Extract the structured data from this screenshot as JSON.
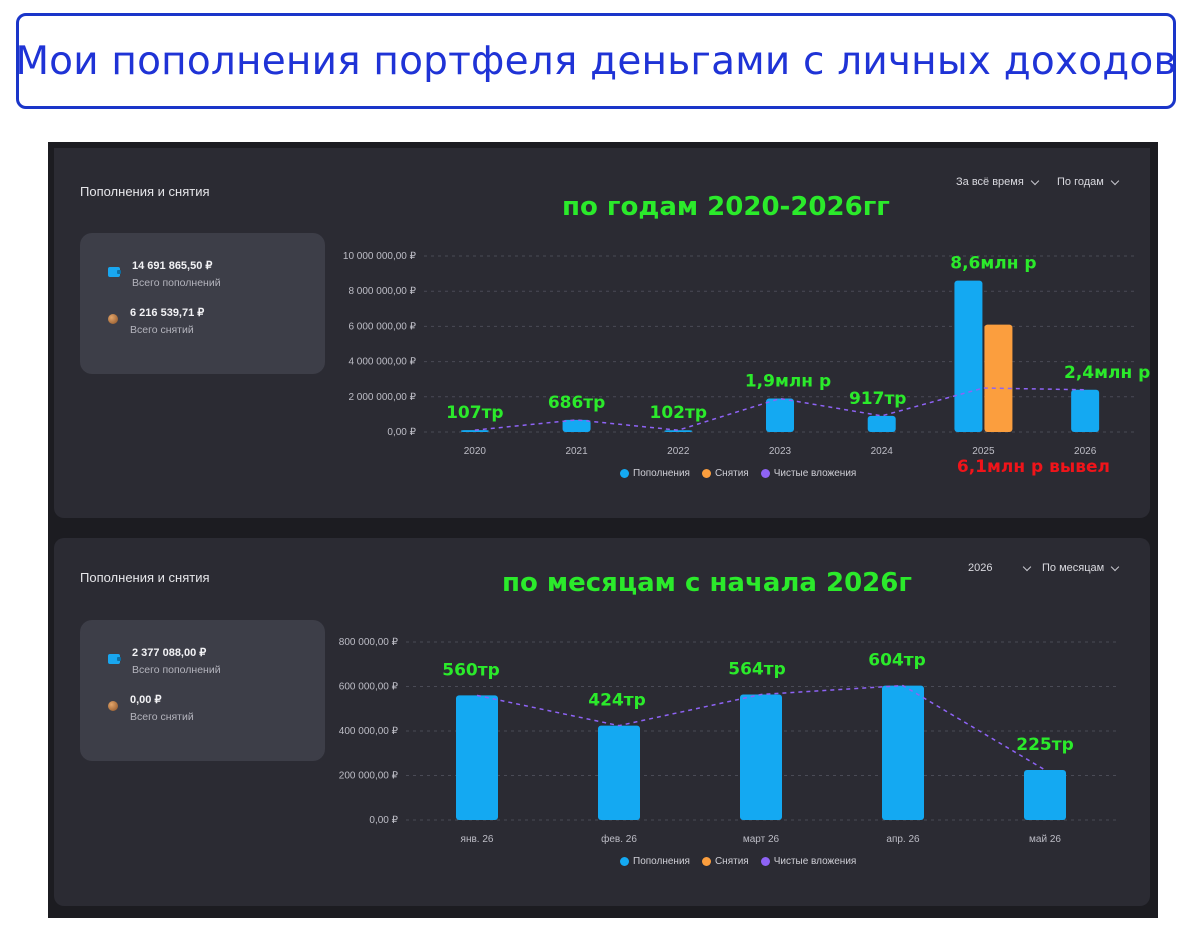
{
  "banner": {
    "title": "Мои пополнения портфеля деньгами с личных доходов"
  },
  "colors": {
    "deposits": "#14a9f2",
    "withdrawals": "#fb9e3e",
    "net": "#8e63f5",
    "annotation_green": "#2bea2b",
    "annotation_red": "#f0141a"
  },
  "panels": [
    {
      "title": "Пополнения и снятия",
      "dropdowns": [
        "За всё время",
        "По годам"
      ],
      "summary": {
        "deposits_value": "14 691 865,50 ₽",
        "deposits_label": "Всего пополнений",
        "withdrawals_value": "6 216 539,71 ₽",
        "withdrawals_label": "Всего снятий"
      },
      "heading_overlay": "по годам 2020-2026гг",
      "legend": [
        "Пополнения",
        "Снятия",
        "Чистые вложения"
      ]
    },
    {
      "title": "Пополнения и снятия",
      "dropdowns": [
        "2026",
        "По месяцам"
      ],
      "summary": {
        "deposits_value": "2 377 088,00 ₽",
        "deposits_label": "Всего пополнений",
        "withdrawals_value": "0,00 ₽",
        "withdrawals_label": "Всего снятий"
      },
      "heading_overlay": "по месяцам с начала 2026г",
      "legend": [
        "Пополнения",
        "Снятия",
        "Чистые вложения"
      ]
    }
  ],
  "chart_data": [
    {
      "type": "bar",
      "categories": [
        "2020",
        "2021",
        "2022",
        "2023",
        "2024",
        "2025",
        "2026"
      ],
      "y_ticks": [
        "0,00 ₽",
        "2 000 000,00 ₽",
        "4 000 000,00 ₽",
        "6 000 000,00 ₽",
        "8 000 000,00 ₽",
        "10 000 000,00 ₽"
      ],
      "ylim": [
        0,
        10000000
      ],
      "series": [
        {
          "name": "Пополнения",
          "values": [
            107000,
            686000,
            102000,
            1900000,
            917000,
            8600000,
            2400000
          ]
        },
        {
          "name": "Снятия",
          "values": [
            0,
            0,
            0,
            0,
            0,
            6100000,
            0
          ]
        },
        {
          "name": "Чистые вложения",
          "values": [
            107000,
            686000,
            102000,
            1900000,
            917000,
            2500000,
            2400000
          ]
        }
      ],
      "annotations": [
        "107тр",
        "686тр",
        "102тр",
        "1,9млн р",
        "917тр",
        "8,6млн р",
        "2,4млн р"
      ],
      "withdrawal_annotation": "6,1млн р вывел",
      "grid": true,
      "legend_position": "bottom"
    },
    {
      "type": "bar",
      "categories": [
        "янв. 26",
        "фев. 26",
        "март 26",
        "апр. 26",
        "май 26"
      ],
      "y_ticks": [
        "0,00 ₽",
        "200 000,00 ₽",
        "400 000,00 ₽",
        "600 000,00 ₽",
        "800 000,00 ₽"
      ],
      "ylim": [
        0,
        800000
      ],
      "series": [
        {
          "name": "Пополнения",
          "values": [
            560000,
            424000,
            564000,
            604000,
            225000
          ]
        },
        {
          "name": "Снятия",
          "values": [
            0,
            0,
            0,
            0,
            0
          ]
        },
        {
          "name": "Чистые вложения",
          "values": [
            560000,
            424000,
            564000,
            604000,
            225000
          ]
        }
      ],
      "annotations": [
        "560тр",
        "424тр",
        "564тр",
        "604тр",
        "225тр"
      ],
      "grid": true,
      "legend_position": "bottom"
    }
  ]
}
